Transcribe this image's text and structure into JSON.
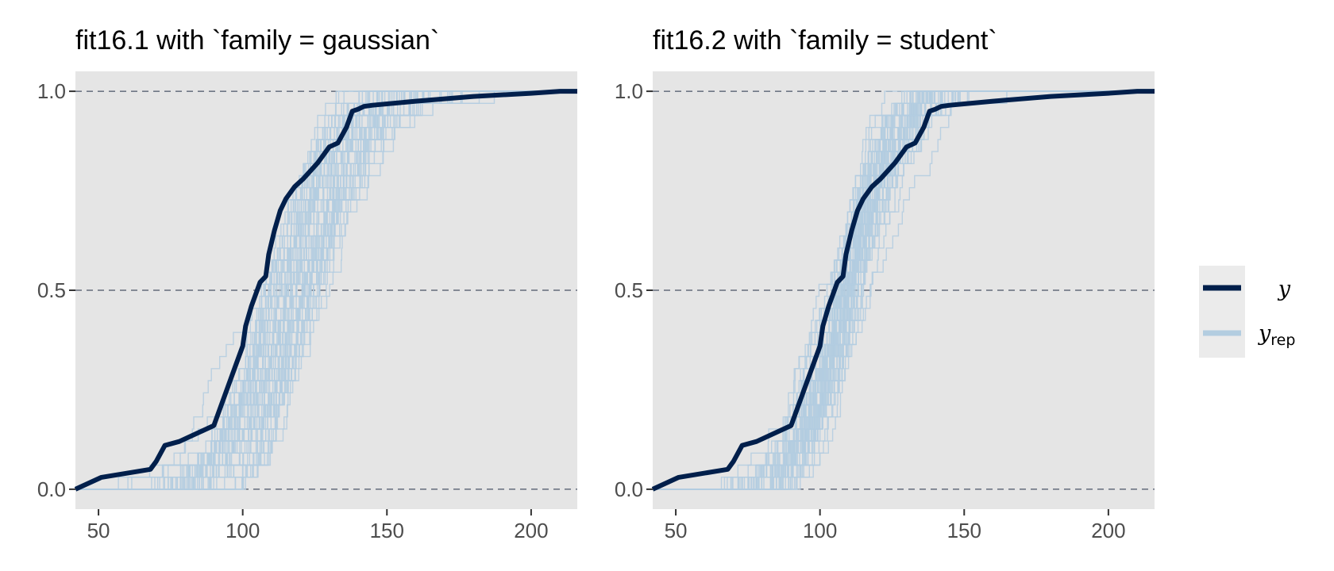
{
  "chart_data": [
    {
      "type": "line",
      "title": "fit16.1 with `family = gaussian`",
      "xlabel": "",
      "ylabel": "",
      "xlim": [
        42,
        216
      ],
      "ylim": [
        -0.05,
        1.05
      ],
      "x_ticks": [
        50,
        100,
        150,
        200
      ],
      "y_ticks": [
        0.0,
        0.5,
        1.0
      ],
      "x_tick_labels": [
        "50",
        "100",
        "150",
        "200"
      ],
      "y_tick_labels": [
        "0.0",
        "0.5",
        "1.0"
      ],
      "grid": "dashed horizontal at y ticks",
      "replicate_draws": 60,
      "yrep_seed": 16001,
      "yrep_mean_range": [
        108,
        126
      ],
      "yrep_sd_range": [
        14,
        21
      ],
      "series": [
        {
          "name": "y",
          "color": "#011f4b",
          "x": [
            42,
            51,
            68,
            70,
            73,
            78,
            90,
            98,
            100,
            101,
            103,
            106,
            108,
            109,
            111,
            113,
            115,
            118,
            121,
            126,
            129,
            130,
            133,
            136,
            138,
            140,
            142,
            145,
            160,
            180,
            200,
            210,
            216
          ],
          "y": [
            0.0,
            0.03,
            0.05,
            0.07,
            0.11,
            0.12,
            0.16,
            0.32,
            0.36,
            0.41,
            0.46,
            0.52,
            0.535,
            0.59,
            0.65,
            0.7,
            0.73,
            0.76,
            0.78,
            0.82,
            0.85,
            0.86,
            0.87,
            0.91,
            0.95,
            0.955,
            0.962,
            0.965,
            0.975,
            0.987,
            0.995,
            1.0,
            1.0
          ]
        }
      ]
    },
    {
      "type": "line",
      "title": "fit16.2 with `family = student`",
      "xlabel": "",
      "ylabel": "",
      "xlim": [
        42,
        216
      ],
      "ylim": [
        -0.05,
        1.05
      ],
      "x_ticks": [
        50,
        100,
        150,
        200
      ],
      "y_ticks": [
        0.0,
        0.5,
        1.0
      ],
      "x_tick_labels": [
        "50",
        "100",
        "150",
        "200"
      ],
      "y_tick_labels": [
        "0.0",
        "0.5",
        "1.0"
      ],
      "grid": "dashed horizontal at y ticks",
      "replicate_draws": 60,
      "yrep_seed": 16002,
      "yrep_mean_range": [
        106,
        114
      ],
      "yrep_sd_range": [
        12,
        17
      ],
      "series": [
        {
          "name": "y",
          "color": "#011f4b",
          "x": [
            42,
            51,
            68,
            70,
            73,
            78,
            90,
            98,
            100,
            101,
            103,
            106,
            108,
            109,
            111,
            113,
            115,
            118,
            121,
            126,
            129,
            130,
            133,
            136,
            138,
            140,
            142,
            145,
            160,
            180,
            200,
            210,
            216
          ],
          "y": [
            0.0,
            0.03,
            0.05,
            0.07,
            0.11,
            0.12,
            0.16,
            0.32,
            0.36,
            0.41,
            0.46,
            0.52,
            0.535,
            0.59,
            0.65,
            0.7,
            0.73,
            0.76,
            0.78,
            0.82,
            0.85,
            0.86,
            0.87,
            0.91,
            0.95,
            0.955,
            0.962,
            0.965,
            0.975,
            0.987,
            0.995,
            1.0,
            1.0
          ]
        }
      ]
    }
  ],
  "legend": {
    "placement": "right",
    "items": [
      {
        "name": "y",
        "label": "y",
        "subscript": "",
        "color": "#011f4b"
      },
      {
        "name": "yrep",
        "label": "y",
        "subscript": "rep",
        "color": "#b3cde0"
      }
    ]
  },
  "style": {
    "panel_background": "#e5e5e5",
    "grid_color": "#4a5466",
    "y_color": "#011f4b",
    "yrep_color": "#b3cde0",
    "legend_background": "#ebebeb"
  }
}
